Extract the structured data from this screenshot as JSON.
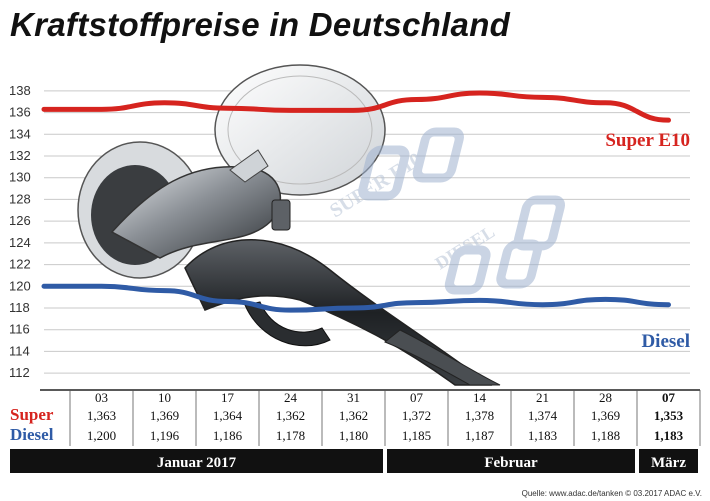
{
  "title": "Kraftstoffpreise in Deutschland",
  "source": "Quelle: www.adac.de/tanken  © 03.2017  ADAC e.V.",
  "colors": {
    "super": "#d6241f",
    "diesel": "#2f5ba6",
    "band": "#111111"
  },
  "illustration": {
    "watermark_super": "SUPER E10",
    "watermark_diesel": "DIESEL"
  },
  "table": {
    "super_label": "Super",
    "diesel_label": "Diesel",
    "months": [
      {
        "label": "Januar 2017"
      },
      {
        "label": "Februar"
      },
      {
        "label": "März"
      }
    ]
  },
  "chart_data": {
    "type": "line",
    "title": "Kraftstoffpreise in Deutschland",
    "y_ticks": [
      112,
      114,
      116,
      118,
      120,
      122,
      124,
      126,
      128,
      130,
      132,
      134,
      136,
      138
    ],
    "ylim": [
      111,
      139
    ],
    "grid": true,
    "categories": [
      "03",
      "10",
      "17",
      "24",
      "31",
      "07",
      "14",
      "21",
      "28",
      "07"
    ],
    "series": [
      {
        "name": "Super E10",
        "display_values": [
          "1,363",
          "1,369",
          "1,364",
          "1,362",
          "1,362",
          "1,372",
          "1,378",
          "1,374",
          "1,369",
          "1,353"
        ],
        "values": [
          136.3,
          136.9,
          136.4,
          136.2,
          136.2,
          137.2,
          137.8,
          137.4,
          136.9,
          135.3
        ]
      },
      {
        "name": "Diesel",
        "display_values": [
          "1,200",
          "1,196",
          "1,186",
          "1,178",
          "1,180",
          "1,185",
          "1,187",
          "1,183",
          "1,188",
          "1,183"
        ],
        "values": [
          120.0,
          119.6,
          118.6,
          117.8,
          118.0,
          118.5,
          118.7,
          118.3,
          118.8,
          118.3
        ]
      }
    ]
  }
}
